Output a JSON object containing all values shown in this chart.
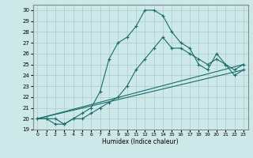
{
  "xlabel": "Humidex (Indice chaleur)",
  "background_color": "#cce8e8",
  "grid_color": "#aacccc",
  "line_color": "#1a6b6b",
  "xlim": [
    -0.5,
    23.5
  ],
  "ylim": [
    19.0,
    30.5
  ],
  "yticks": [
    19,
    20,
    21,
    22,
    23,
    24,
    25,
    26,
    27,
    28,
    29,
    30
  ],
  "xticks": [
    0,
    1,
    2,
    3,
    4,
    5,
    6,
    7,
    8,
    9,
    10,
    11,
    12,
    13,
    14,
    15,
    16,
    17,
    18,
    19,
    20,
    21,
    22,
    23
  ],
  "line1_x": [
    0,
    1,
    2,
    3,
    4,
    5,
    6,
    7,
    8,
    9,
    10,
    11,
    12,
    13,
    14,
    15,
    16,
    17,
    18,
    19,
    20,
    21,
    22,
    23
  ],
  "line1_y": [
    20.0,
    20.0,
    20.0,
    19.5,
    20.0,
    20.5,
    21.0,
    22.5,
    25.5,
    27.0,
    27.5,
    28.5,
    30.0,
    30.0,
    29.5,
    28.0,
    27.0,
    26.5,
    25.0,
    24.5,
    26.0,
    25.0,
    24.5,
    25.0
  ],
  "line2_x": [
    0,
    1,
    2,
    3,
    4,
    5,
    6,
    7,
    8,
    9,
    10,
    11,
    12,
    13,
    14,
    15,
    16,
    17,
    18,
    19,
    20,
    21,
    22,
    23
  ],
  "line2_y": [
    20.0,
    20.0,
    19.5,
    19.5,
    20.0,
    20.0,
    20.5,
    21.0,
    21.5,
    22.0,
    23.0,
    24.5,
    25.5,
    26.5,
    27.5,
    26.5,
    26.5,
    26.0,
    25.5,
    25.0,
    25.5,
    25.0,
    24.0,
    24.5
  ],
  "line3_x": [
    0,
    23
  ],
  "line3_y": [
    20.0,
    24.5
  ],
  "line4_x": [
    0,
    23
  ],
  "line4_y": [
    20.0,
    25.0
  ]
}
